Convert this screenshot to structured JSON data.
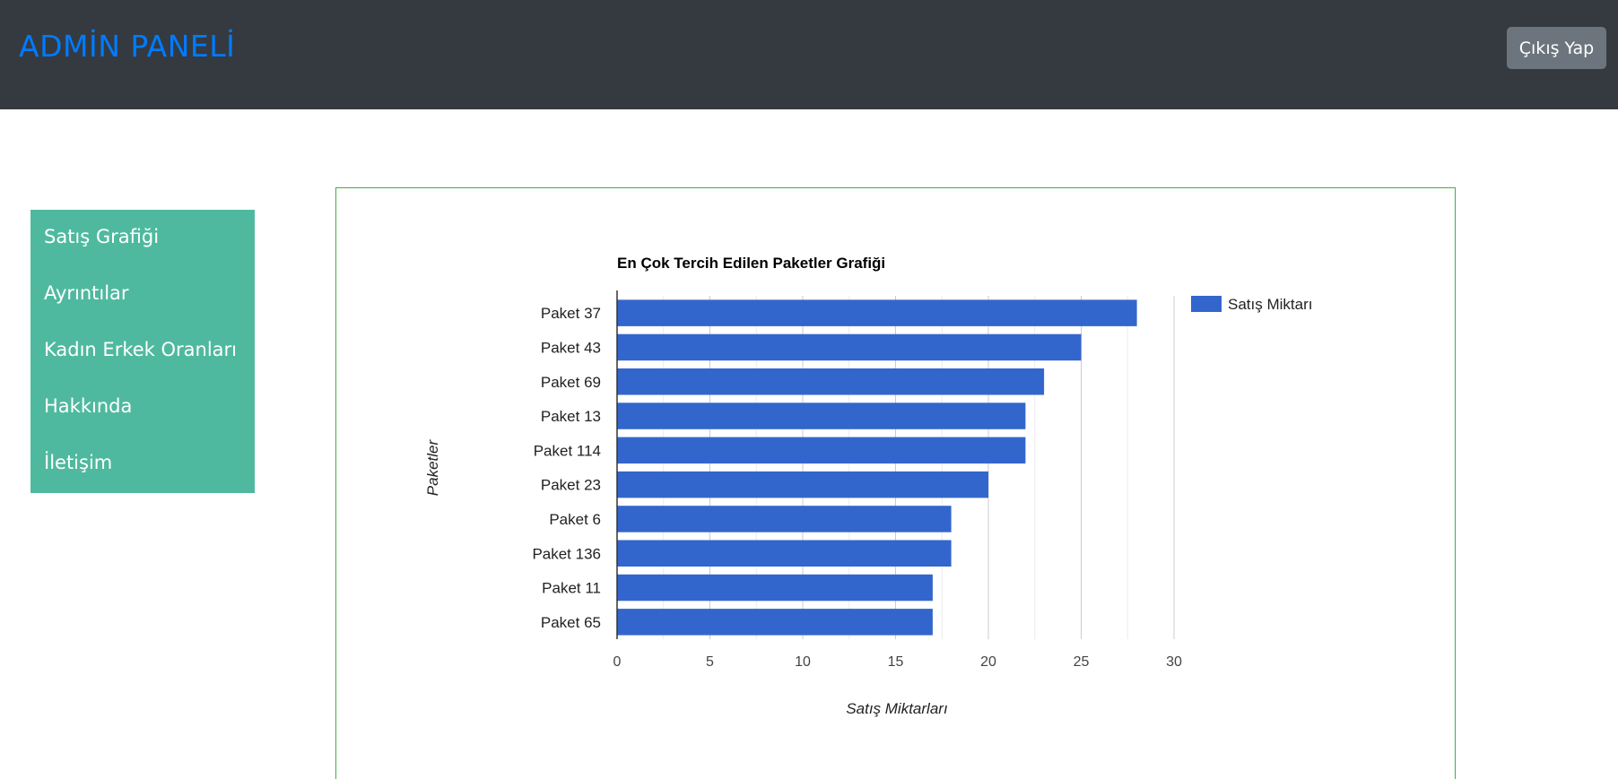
{
  "header": {
    "brand": "ADMİN PANELİ",
    "logout_label": "Çıkış Yap"
  },
  "sidebar": {
    "items": [
      {
        "label": "Satış Grafiği"
      },
      {
        "label": "Ayrıntılar"
      },
      {
        "label": "Kadın Erkek Oranları"
      },
      {
        "label": "Hakkında"
      },
      {
        "label": "İletişim"
      }
    ]
  },
  "colors": {
    "topbar": "#343a40",
    "brand": "#007bff",
    "sidebar": "#4fb99f",
    "bar": "#3366cc",
    "chart_border": "#3fae49"
  },
  "chart_data": {
    "type": "bar",
    "orientation": "horizontal",
    "title": "En Çok Tercih Edilen Paketler Grafiği",
    "xlabel": "Satış Miktarları",
    "ylabel": "Paketler",
    "categories": [
      "Paket 37",
      "Paket 43",
      "Paket 69",
      "Paket 13",
      "Paket 114",
      "Paket 23",
      "Paket 6",
      "Paket 136",
      "Paket 11",
      "Paket 65"
    ],
    "series": [
      {
        "name": "Satış Miktarı",
        "values": [
          28,
          25,
          23,
          22,
          22,
          20,
          18,
          18,
          17,
          17
        ]
      }
    ],
    "xlim": [
      0,
      30
    ],
    "xticks": [
      "0",
      "5",
      "10",
      "15",
      "20",
      "25",
      "30"
    ],
    "grid": true,
    "legend": "right"
  }
}
